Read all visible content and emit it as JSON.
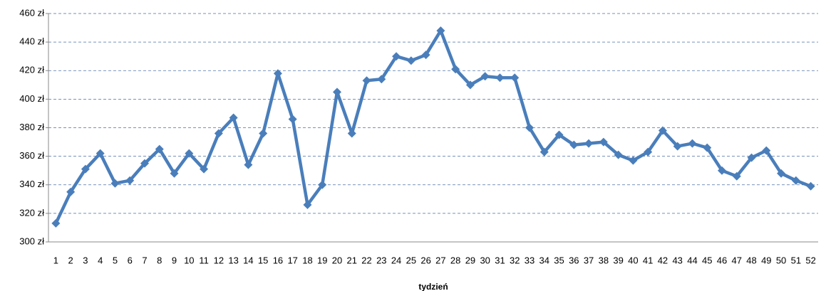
{
  "chart_data": {
    "type": "line",
    "x_label": "tydzień",
    "categories": [
      "1",
      "2",
      "3",
      "4",
      "5",
      "6",
      "7",
      "8",
      "9",
      "10",
      "11",
      "12",
      "13",
      "14",
      "15",
      "16",
      "17",
      "18",
      "19",
      "20",
      "21",
      "22",
      "23",
      "24",
      "25",
      "26",
      "27",
      "28",
      "29",
      "30",
      "31",
      "32",
      "33",
      "34",
      "35",
      "36",
      "37",
      "38",
      "39",
      "40",
      "41",
      "42",
      "43",
      "44",
      "45",
      "46",
      "47",
      "48",
      "49",
      "50",
      "51",
      "52"
    ],
    "values": [
      313,
      335,
      351,
      362,
      341,
      343,
      355,
      365,
      348,
      362,
      351,
      376,
      387,
      354,
      376,
      418,
      386,
      326,
      340,
      405,
      376,
      413,
      414,
      430,
      427,
      431,
      448,
      421,
      410,
      416,
      415,
      415,
      380,
      363,
      375,
      368,
      369,
      370,
      361,
      357,
      363,
      378,
      367,
      369,
      366,
      350,
      346,
      359,
      364,
      348,
      343,
      339
    ],
    "color": "#4a7ebb",
    "ylim": [
      300,
      460
    ],
    "yticks": [
      {
        "value": 300,
        "label": "300 zł"
      },
      {
        "value": 320,
        "label": "320 zł"
      },
      {
        "value": 340,
        "label": "340 zł"
      },
      {
        "value": 360,
        "label": "360 zł"
      },
      {
        "value": 380,
        "label": "380 zł"
      },
      {
        "value": 400,
        "label": "400 zł"
      },
      {
        "value": 420,
        "label": "420 zł"
      },
      {
        "value": 440,
        "label": "440 zł"
      },
      {
        "value": 460,
        "label": "460 zł"
      }
    ],
    "grid": true
  }
}
